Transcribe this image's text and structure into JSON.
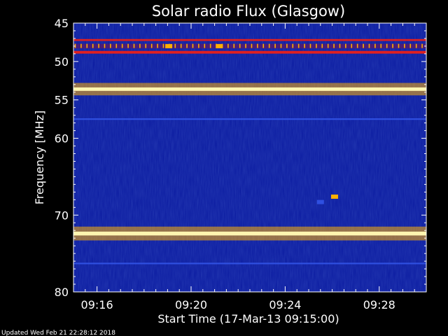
{
  "chart_data": {
    "type": "heatmap",
    "title": "Solar radio Flux (Glasgow)",
    "ylabel": "Frequency [MHz]",
    "xlabel": "Start Time (17-Mar-13 09:15:00)",
    "ylim": [
      45,
      80
    ],
    "y_inverted": true,
    "y_ticks": [
      45,
      50,
      55,
      60,
      70,
      80
    ],
    "x_range_min": [
      0,
      15
    ],
    "x_ticks": [
      {
        "label": "09:16",
        "min": 1
      },
      {
        "label": "09:20",
        "min": 5
      },
      {
        "label": "09:24",
        "min": 9
      },
      {
        "label": "09:28",
        "min": 13
      }
    ],
    "background_color": "#0a1aa0",
    "colors": {
      "page": "#000000",
      "text": "#ffffff",
      "frame": "#ffffff",
      "intense": "#fff5b0",
      "strong": "#ffb000",
      "medium": "#e02020",
      "weak": "#2f4fe0"
    },
    "bands": [
      {
        "freq_mhz": 47.2,
        "width_mhz": 0.25,
        "intensity": "medium"
      },
      {
        "freq_mhz": 48.0,
        "width_mhz": 0.6,
        "intensity": "medium",
        "pattern": "periodic",
        "period_min": 0.25
      },
      {
        "freq_mhz": 48.8,
        "width_mhz": 0.35,
        "intensity": "medium"
      },
      {
        "freq_mhz": 53.6,
        "width_mhz": 0.45,
        "intensity": "intense"
      },
      {
        "freq_mhz": 57.5,
        "width_mhz": 0.2,
        "intensity": "weak"
      },
      {
        "freq_mhz": 72.4,
        "width_mhz": 0.5,
        "intensity": "intense"
      },
      {
        "freq_mhz": 76.3,
        "width_mhz": 0.2,
        "intensity": "weak"
      }
    ],
    "bursts": [
      {
        "time_min": 4.05,
        "freq_mhz": 48.0,
        "intensity": "strong"
      },
      {
        "time_min": 6.2,
        "freq_mhz": 48.0,
        "intensity": "strong"
      },
      {
        "time_min": 11.1,
        "freq_mhz": 67.6,
        "intensity": "strong"
      },
      {
        "time_min": 10.5,
        "freq_mhz": 68.3,
        "intensity": "weak"
      }
    ]
  },
  "footer": {
    "updated": "Updated Wed Feb 21 22:28:12 2018"
  }
}
